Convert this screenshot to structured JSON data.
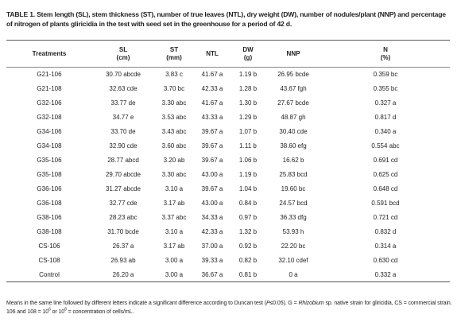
{
  "title": "TABLE 1. Stem length (SL), stem thickness (ST), number of true leaves (NTL), dry weight (DW), number of nodules/plant (NNP) and percentage of nitrogen of plants gliricidia in the test with seed set in the greenhouse for a period of 42 d.",
  "table": {
    "header": [
      [
        "Treatments"
      ],
      [
        "SL",
        "(cm)"
      ],
      [
        "ST",
        "(mm)"
      ],
      [
        "NTL"
      ],
      [
        "DW",
        "(g)"
      ],
      [
        "NNP"
      ],
      [
        "N",
        "(%)"
      ]
    ],
    "rows": [
      [
        "G21-106",
        "30.70 abcde",
        "3.83 c",
        "41.67 a",
        "1.19 b",
        "26.95 bcde",
        "0.359 bc"
      ],
      [
        "G21-108",
        "32.63 cde",
        "3.70 bc",
        "42.33 a",
        "1.28 b",
        "43.67 fgh",
        "0.355 bc"
      ],
      [
        "G32-106",
        "33.77 de",
        "3.30 abc",
        "41.67 a",
        "1.30 b",
        "27.67 bcde",
        "0.327 a"
      ],
      [
        "G32-108",
        "34.77 e",
        "3.53 abc",
        "43.33 a",
        "1.29 b",
        "48.87 gh",
        "0.817 d"
      ],
      [
        "G34-106",
        "33.70 de",
        "3.43 abc",
        "39.67 a",
        "1.07 b",
        "30.40 cde",
        "0.340 a"
      ],
      [
        "G34-108",
        "32.90 cde",
        "3.60 abc",
        "39.67 a",
        "1.11 b",
        "38.60 efg",
        "0.554 abc"
      ],
      [
        "G35-106",
        "28.77 abcd",
        "3.20 ab",
        "39.67 a",
        "1.06 b",
        "16.62 b",
        "0.691 cd"
      ],
      [
        "G35-108",
        "29.70 abcde",
        "3.30 abc",
        "43.00 a",
        "1.19 b",
        "25.83 bcd",
        "0.625 cd"
      ],
      [
        "G36-106",
        "31.27 abcde",
        "3.10 a",
        "39.67 a",
        "1.04 b",
        "19.60 bc",
        "0.648 cd"
      ],
      [
        "G36-108",
        "32.77 cde",
        "3.17 ab",
        "43.00 a",
        "0.84 b",
        "24.57 bcd",
        "0.591 bcd"
      ],
      [
        "G38-106",
        "28.23 abc",
        "3.37 abc",
        "34.33 a",
        "0.97 b",
        "36.33 dfg",
        "0.721 cd"
      ],
      [
        "G38-108",
        "31.70 bcde",
        "3.10 a",
        "42.33 a",
        "1.32 b",
        "53.93 h",
        "0.832 d"
      ],
      [
        "CS-106",
        "26.37 a",
        "3.17 ab",
        "37.00 a",
        "0.92 b",
        "22.20 bc",
        "0.314 a"
      ],
      [
        "CS-108",
        "26.93 ab",
        "3.00 a",
        "39.33 a",
        "0.82 b",
        "32.10 cdef",
        "0.630 cd"
      ],
      [
        "Control",
        "26.20 a",
        "3.00 a",
        "36.67 a",
        "0.81 b",
        "0 a",
        "0.332 a"
      ]
    ]
  },
  "footnote": [
    "Means in the same line followed by different letters indicate a significant difference according to Duncan test (",
    "P",
    "≤0.05). G = ",
    "Rhizobium",
    " sp. native strain for gliricidia, CS = commercial strain. 106 and 108 = 10",
    "6",
    " or 10",
    "8",
    " = concentration of  cells/mL."
  ]
}
